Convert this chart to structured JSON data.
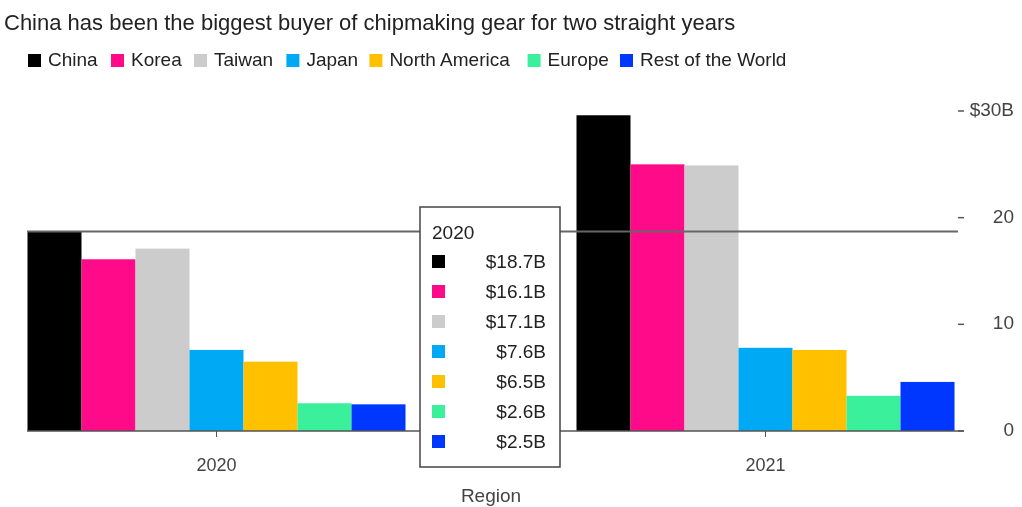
{
  "chart_data": {
    "type": "bar",
    "title": "China has been the biggest buyer of chipmaking gear for two straight years",
    "xlabel": "Region",
    "categories": [
      "2020",
      "2021"
    ],
    "series": [
      {
        "name": "China",
        "color": "#000000",
        "values": [
          18.7,
          29.6
        ]
      },
      {
        "name": "Korea",
        "color": "#ff0b8a",
        "values": [
          16.1,
          25.0
        ]
      },
      {
        "name": "Taiwan",
        "color": "#cccccc",
        "values": [
          17.1,
          24.9
        ]
      },
      {
        "name": "Japan",
        "color": "#00a9f4",
        "values": [
          7.6,
          7.8
        ]
      },
      {
        "name": "North America",
        "color": "#ffc000",
        "values": [
          6.5,
          7.6
        ]
      },
      {
        "name": "Europe",
        "color": "#3af09a",
        "values": [
          2.6,
          3.3
        ]
      },
      {
        "name": "Rest of the World",
        "color": "#0037ff",
        "values": [
          2.5,
          4.6
        ]
      }
    ],
    "ylim": [
      0,
      30
    ],
    "yticks": [
      0,
      10,
      20,
      {
        "value": 30,
        "label": "$30B"
      }
    ],
    "grid": false,
    "legend": "top left",
    "ref_lines": [
      {
        "axis": "y",
        "value": 18.7,
        "color": "#666666"
      }
    ],
    "annotations": [
      "2020",
      "$18.7B",
      "$16.1B",
      "$17.1B",
      "$7.6B",
      "$6.5B",
      "$2.6B",
      "$2.5B"
    ]
  }
}
